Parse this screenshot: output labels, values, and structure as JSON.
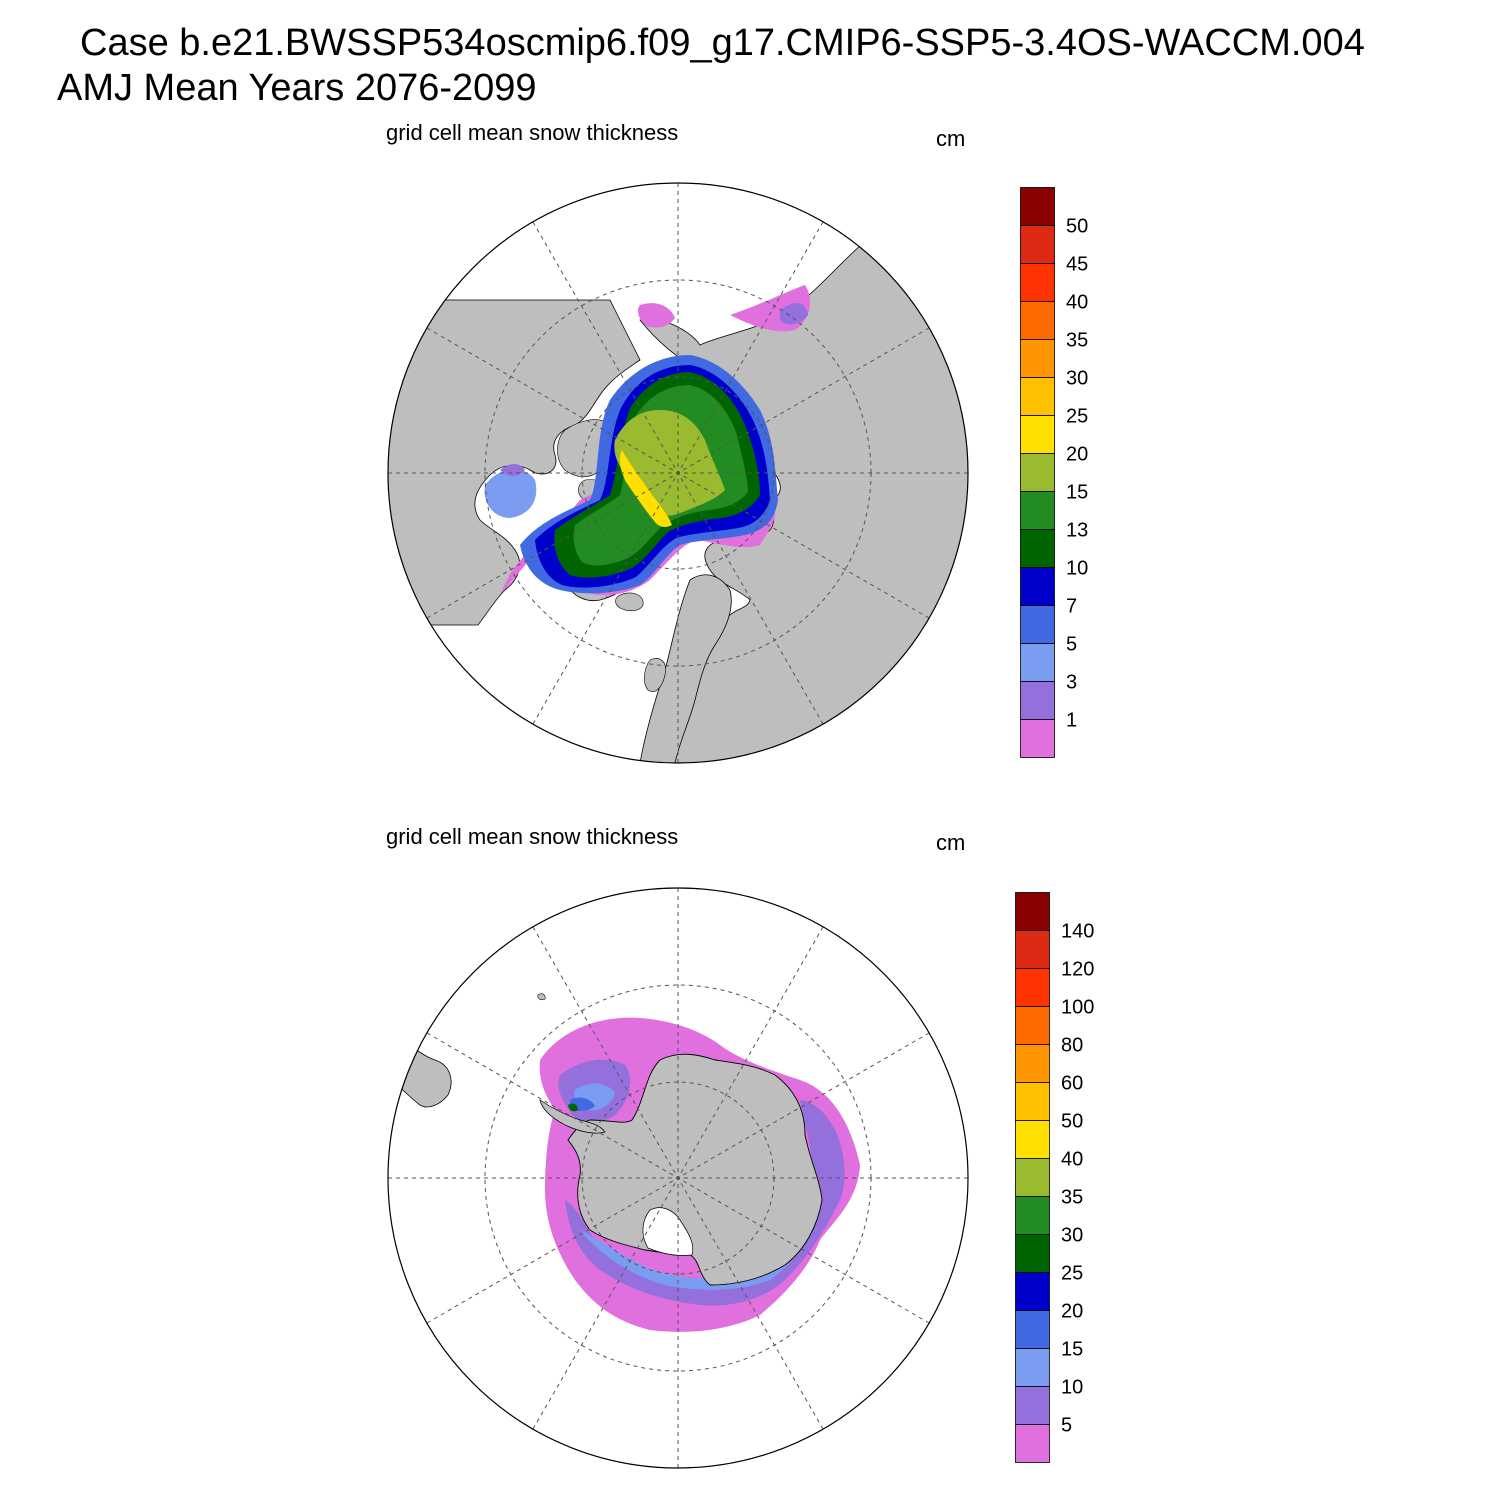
{
  "header": {
    "case_line": "Case b.e21.BWSSP534oscmip6.f09_g17.CMIP6-SSP5-3.4OS-WACCM.004",
    "period_line": "AMJ Mean   Years 2076-2099"
  },
  "panels": [
    {
      "id": "nh",
      "title": "grid cell mean snow thickness",
      "units": "cm",
      "hemisphere": "north",
      "colorbar": {
        "levels": [
          "1",
          "3",
          "5",
          "7",
          "10",
          "13",
          "15",
          "20",
          "25",
          "30",
          "35",
          "40",
          "45",
          "50"
        ],
        "colors": [
          "#e070de",
          "#9370db",
          "#7a9df2",
          "#4169e1",
          "#0000cd",
          "#006400",
          "#228b22",
          "#9aba30",
          "#ffe000",
          "#ffc000",
          "#ff9500",
          "#ff6a00",
          "#ff3300",
          "#dd2a14",
          "#8b0000"
        ]
      }
    },
    {
      "id": "sh",
      "title": "grid cell mean snow thickness",
      "units": "cm",
      "hemisphere": "south",
      "colorbar": {
        "levels": [
          "5",
          "10",
          "15",
          "20",
          "25",
          "30",
          "35",
          "40",
          "50",
          "60",
          "80",
          "100",
          "120",
          "140"
        ],
        "colors": [
          "#e070de",
          "#9370db",
          "#7a9df2",
          "#4169e1",
          "#0000cd",
          "#006400",
          "#228b22",
          "#9aba30",
          "#ffe000",
          "#ffc000",
          "#ff9500",
          "#ff6a00",
          "#ff3300",
          "#dd2a14",
          "#8b0000"
        ]
      }
    }
  ],
  "colors": {
    "land": "#bebebe",
    "ocean": "#ffffff",
    "outline": "#000000"
  }
}
